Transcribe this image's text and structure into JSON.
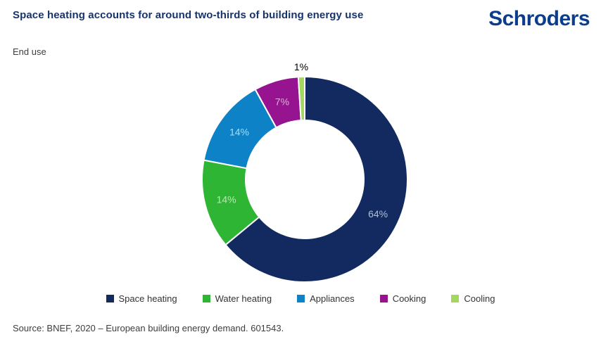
{
  "header": {
    "title": "Space heating accounts for around two-thirds of building energy use",
    "logo_text": "Schroders"
  },
  "footer": {
    "source": "Source: BNEF, 2020 – European building energy demand. 601543."
  },
  "colors": {
    "title_text": "#17336b",
    "logo_blue": "#0c3c8e",
    "body_text": "#3d3d3d"
  },
  "chart_data": {
    "type": "pie",
    "donut": true,
    "title": "Space heating accounts for around two-thirds of building energy use",
    "series_name": "End use",
    "legend_position": "bottom",
    "direction": "clockwise",
    "start_angle_deg": 0,
    "slice_border_color": "#ffffff",
    "slices": [
      {
        "label": "Space heating",
        "value": 64,
        "pct_label": "64%",
        "color": "#122a60",
        "label_color": "#b0bfd9",
        "label_outside": false
      },
      {
        "label": "Water heating",
        "value": 14,
        "pct_label": "14%",
        "color": "#2eb534",
        "label_color": "#b9e7b2",
        "label_outside": false
      },
      {
        "label": "Appliances",
        "value": 14,
        "pct_label": "14%",
        "color": "#0d82c6",
        "label_color": "#a9def7",
        "label_outside": false
      },
      {
        "label": "Cooking",
        "value": 7,
        "pct_label": "7%",
        "color": "#96148f",
        "label_color": "#e2aede",
        "label_outside": false
      },
      {
        "label": "Cooling",
        "value": 1,
        "pct_label": "1%",
        "color": "#a5d75f",
        "label_color": "#000000",
        "label_outside": true
      }
    ]
  }
}
